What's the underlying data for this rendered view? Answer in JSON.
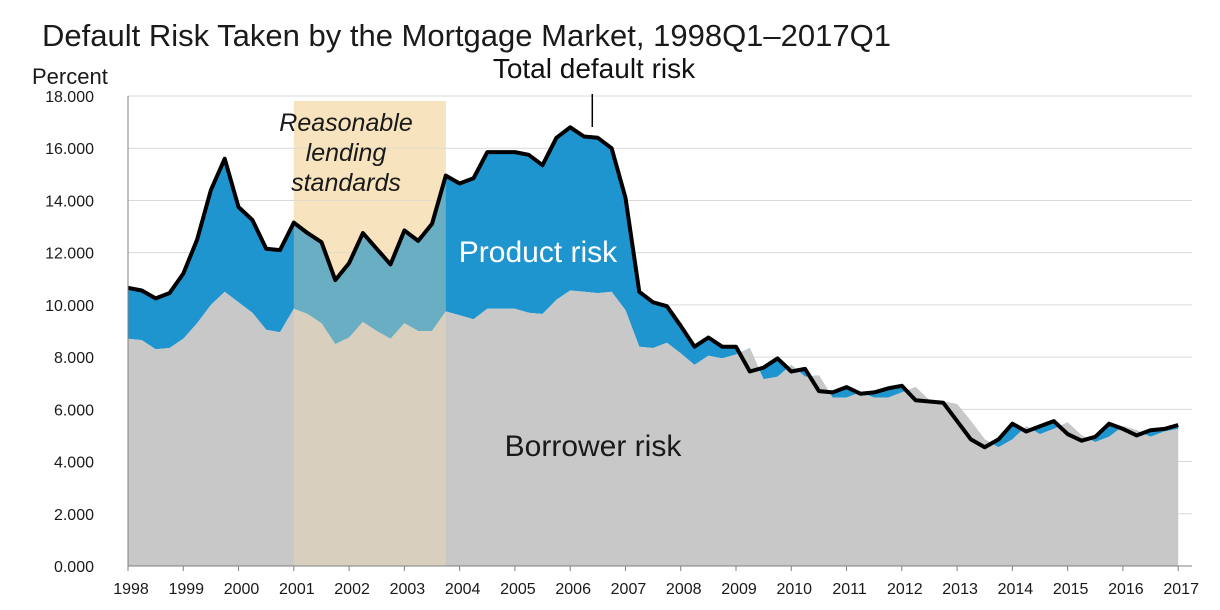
{
  "chart_data": {
    "type": "area",
    "title": "Default Risk Taken by the Mortgage Market, 1998Q1–2017Q1",
    "ylabel": "Percent",
    "ylim": [
      0,
      18
    ],
    "xlim": [
      1998,
      2017.25
    ],
    "yticks": [
      "0.000",
      "2.000",
      "4.000",
      "6.000",
      "8.000",
      "10.000",
      "12.000",
      "14.000",
      "16.000",
      "18.000"
    ],
    "xticks": [
      "1998",
      "1999",
      "2000",
      "2001",
      "2002",
      "2003",
      "2004",
      "2005",
      "2006",
      "2007",
      "2008",
      "2009",
      "2010",
      "2011",
      "2012",
      "2013",
      "2014",
      "2015",
      "2016",
      "2017"
    ],
    "grid": true,
    "colors": {
      "borrower": "#c8c8c8",
      "product": "#1f95cf",
      "total_line": "#000000",
      "shade": "#f5deb0"
    },
    "shaded_period": {
      "label": "Reasonable lending standards",
      "label_lines": [
        "Reasonable",
        "lending",
        "standards"
      ],
      "x_start": 2001.0,
      "x_end": 2003.75
    },
    "annotations": {
      "total": "Total default risk",
      "total_x": 2006.4,
      "product": "Product risk",
      "borrower": "Borrower risk"
    },
    "x": [
      1998.0,
      1998.25,
      1998.5,
      1998.75,
      1999.0,
      1999.25,
      1999.5,
      1999.75,
      2000.0,
      2000.25,
      2000.5,
      2000.75,
      2001.0,
      2001.25,
      2001.5,
      2001.75,
      2002.0,
      2002.25,
      2002.5,
      2002.75,
      2003.0,
      2003.25,
      2003.5,
      2003.75,
      2004.0,
      2004.25,
      2004.5,
      2004.75,
      2005.0,
      2005.25,
      2005.5,
      2005.75,
      2006.0,
      2006.25,
      2006.5,
      2006.75,
      2007.0,
      2007.25,
      2007.5,
      2007.75,
      2008.0,
      2008.25,
      2008.5,
      2008.75,
      2009.0,
      2009.25,
      2009.5,
      2009.75,
      2010.0,
      2010.25,
      2010.5,
      2010.75,
      2011.0,
      2011.25,
      2011.5,
      2011.75,
      2012.0,
      2012.25,
      2012.5,
      2012.75,
      2013.0,
      2013.25,
      2013.5,
      2013.75,
      2014.0,
      2014.25,
      2014.5,
      2014.75,
      2015.0,
      2015.25,
      2015.5,
      2015.75,
      2016.0,
      2016.25,
      2016.5,
      2016.75,
      2017.0
    ],
    "series": [
      {
        "name": "Borrower risk",
        "values": [
          8.7,
          8.65,
          8.3,
          8.35,
          8.7,
          9.3,
          10.0,
          10.5,
          10.1,
          9.7,
          9.05,
          8.95,
          9.85,
          9.65,
          9.3,
          8.5,
          8.75,
          9.35,
          9.0,
          8.7,
          9.3,
          9.0,
          9.0,
          9.75,
          9.6,
          9.45,
          9.85,
          9.85,
          9.85,
          9.7,
          9.65,
          10.2,
          10.55,
          10.5,
          10.45,
          10.5,
          9.8,
          8.4,
          8.35,
          8.55,
          8.15,
          7.7,
          8.05,
          7.95,
          8.1,
          8.35,
          7.15,
          7.25,
          7.7,
          7.25,
          7.3,
          6.45,
          6.45,
          6.65,
          6.45,
          6.45,
          6.65,
          6.85,
          6.35,
          6.3,
          6.2,
          5.55,
          4.85,
          4.55,
          4.85,
          5.35,
          5.05,
          5.25,
          5.5,
          5.0,
          4.75,
          4.95,
          5.35,
          5.2,
          4.95,
          5.15,
          5.25
        ]
      },
      {
        "name": "Total default risk",
        "values": [
          10.65,
          10.55,
          10.25,
          10.45,
          11.2,
          12.5,
          14.4,
          15.6,
          13.75,
          13.25,
          12.15,
          12.1,
          13.15,
          12.75,
          12.4,
          10.95,
          11.6,
          12.75,
          12.15,
          11.55,
          12.85,
          12.45,
          13.1,
          14.95,
          14.65,
          14.85,
          15.85,
          15.85,
          15.85,
          15.75,
          15.35,
          16.4,
          16.8,
          16.45,
          16.4,
          16.0,
          14.1,
          10.5,
          10.1,
          9.95,
          9.2,
          8.4,
          8.75,
          8.4,
          8.4,
          7.45,
          7.6,
          7.95,
          7.45,
          7.55,
          6.7,
          6.65,
          6.85,
          6.6,
          6.65,
          6.8,
          6.9,
          6.35,
          6.3,
          6.25,
          5.55,
          4.85,
          4.55,
          4.85,
          5.45,
          5.15,
          5.35,
          5.55,
          5.05,
          4.8,
          4.95,
          5.45,
          5.25,
          5.0,
          5.2,
          5.25,
          5.4
        ]
      }
    ]
  }
}
